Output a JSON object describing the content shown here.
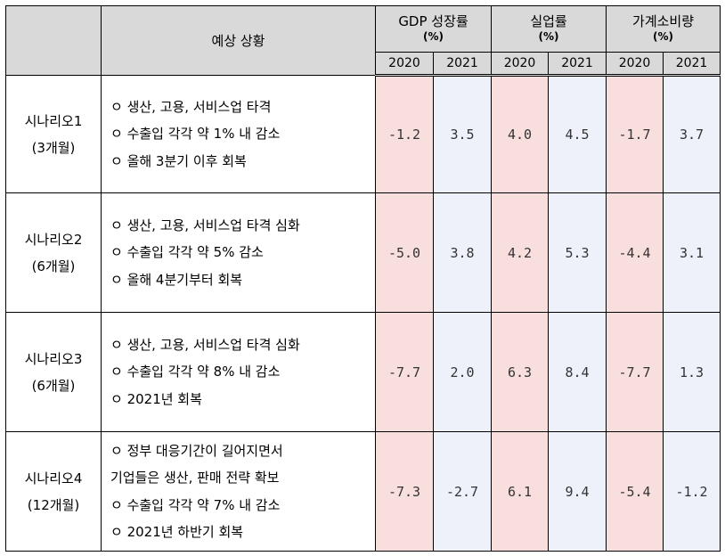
{
  "header": {
    "scenario_col": "",
    "description_col": "예상 상황",
    "groups": [
      {
        "title": "GDP 성장률",
        "unit": "(%)"
      },
      {
        "title": "실업률",
        "unit": "(%)"
      },
      {
        "title": "가계소비량",
        "unit": "(%)"
      }
    ],
    "years": [
      "2020",
      "2021",
      "2020",
      "2021",
      "2020",
      "2021"
    ]
  },
  "rows": [
    {
      "name_line1": "시나리오1",
      "name_line2": "(3개월)",
      "desc": [
        "ㅇ 생산, 고용, 서비스업 타격",
        "ㅇ 수출입 각각 약 1% 내 감소",
        "ㅇ 올해 3분기 이후 회복"
      ],
      "values": [
        "-1.2",
        "3.5",
        "4.0",
        "4.5",
        "-1.7",
        "3.7"
      ]
    },
    {
      "name_line1": "시나리오2",
      "name_line2": "(6개월)",
      "desc": [
        "ㅇ 생산, 고용, 서비스업 타격 심화",
        "ㅇ 수출입 각각 약 5% 감소",
        "ㅇ 올해 4분기부터 회복"
      ],
      "values": [
        "-5.0",
        "3.8",
        "4.2",
        "5.3",
        "-4.4",
        "3.1"
      ]
    },
    {
      "name_line1": "시나리오3",
      "name_line2": "(6개월)",
      "desc": [
        "ㅇ 생산, 고용, 서비스업 타격 심화",
        "ㅇ 수출입 각각 약 8% 내 감소",
        "ㅇ 2021년 회복"
      ],
      "values": [
        "-7.7",
        "2.0",
        "6.3",
        "8.4",
        "-7.7",
        "1.3"
      ]
    },
    {
      "name_line1": "시나리오4",
      "name_line2": "(12개월)",
      "desc": [
        "ㅇ 정부 대응기간이 길어지면서",
        "기업들은 생산, 판매 전략 확보",
        "ㅇ 수출입 각각 약 7% 내 감소",
        "ㅇ 2021년 하반기 회복"
      ],
      "values": [
        "-7.3",
        "-2.7",
        "6.1",
        "9.4",
        "-5.4",
        "-1.2"
      ]
    }
  ]
}
